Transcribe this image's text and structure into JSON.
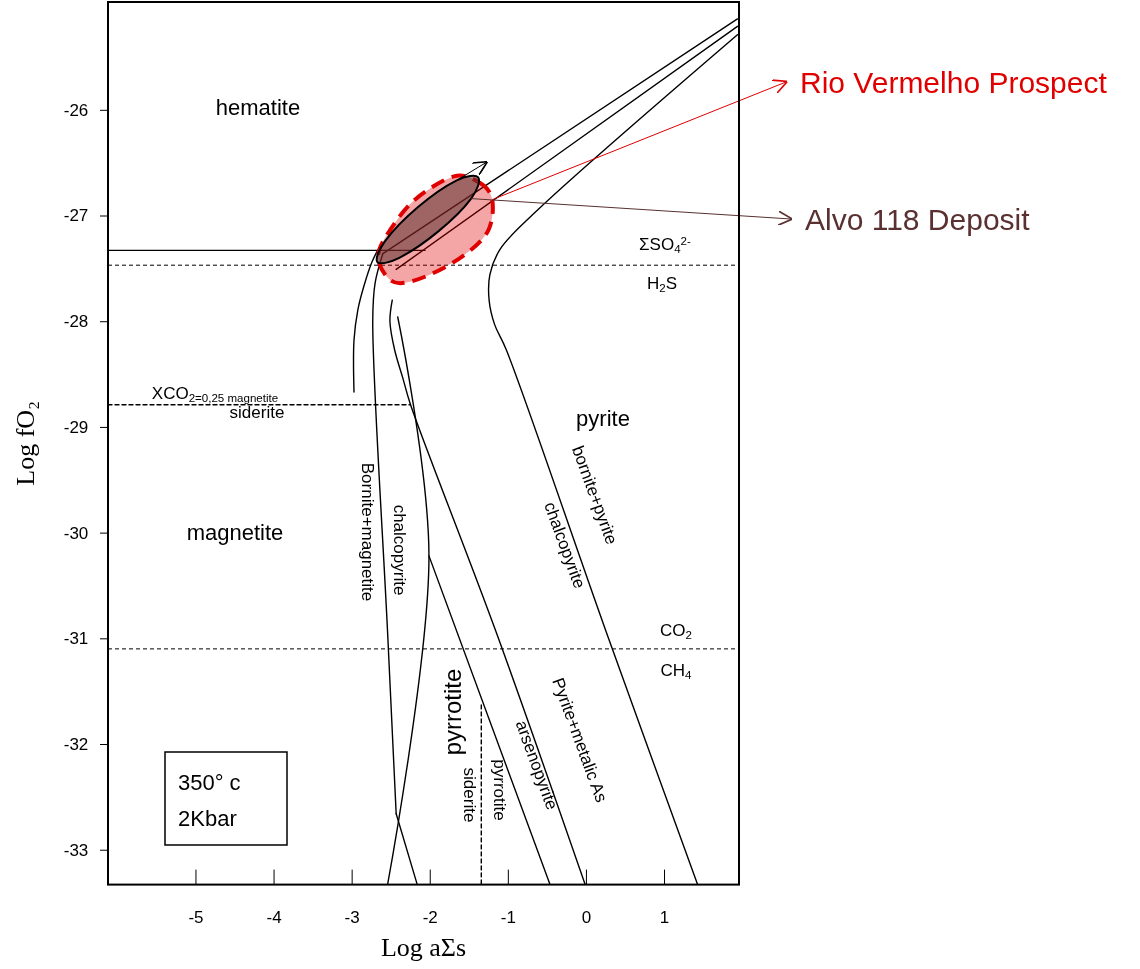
{
  "chart_data": {
    "type": "line",
    "xlabel": "Log aΣs",
    "ylabel": "Log fO₂",
    "xlim": [
      -6.12,
      1.96
    ],
    "xticks": [
      -5,
      -4,
      -3,
      -2,
      -1,
      0,
      1
    ],
    "ylim": [
      -33.33,
      -24.98
    ],
    "yticks": [
      -33,
      -32,
      -31,
      -30,
      -29,
      -28,
      -27,
      -26
    ],
    "ref_lines": [
      {
        "axis": "y",
        "value": -27.47,
        "line_style": "dashed",
        "color": "#000000"
      },
      {
        "axis": "y",
        "value": -31.1,
        "line_style": "dashed",
        "color": "#000000"
      }
    ],
    "series": [
      {
        "color": "#000000",
        "line_style": "solid",
        "x": [
          -6.12,
          -2.06
        ],
        "values": [
          -27.33,
          -27.33
        ]
      },
      {
        "color": "#000000",
        "line_style": "solid",
        "x": [
          -2.97,
          -2.97,
          -2.92,
          -2.84,
          -2.74,
          -2.66
        ],
        "values": [
          -28.67,
          -28.18,
          -27.89,
          -27.66,
          -27.44,
          -27.32
        ]
      },
      {
        "color": "#000000",
        "line_style": "solid",
        "x": [
          -2.6,
          -2.7,
          -2.73,
          -2.54,
          -2.43
        ],
        "values": [
          -27.36,
          -27.64,
          -28.0,
          -30.94,
          -32.66
        ]
      },
      {
        "color": "#000000",
        "line_style": "solid",
        "x": [
          -2.41,
          -2.01,
          -2.54
        ],
        "values": [
          -27.96,
          -30.22,
          -33.33
        ]
      },
      {
        "color": "#000000",
        "line_style": "solid",
        "x": [
          -2.43,
          -2.16
        ],
        "values": [
          -32.66,
          -33.33
        ]
      },
      {
        "color": "#000000",
        "line_style": "solid",
        "x": [
          -2.01,
          -0.46
        ],
        "values": [
          -30.22,
          -33.33
        ]
      },
      {
        "color": "#000000",
        "line_style": "solid",
        "x": [
          -2.48,
          -2.51,
          -2.45,
          -2.34,
          -2.25,
          -1.15,
          -0.01
        ],
        "values": [
          -27.8,
          -28.0,
          -28.27,
          -28.55,
          -28.78,
          -30.94,
          -33.33
        ]
      },
      {
        "color": "#000000",
        "line_style": "solid",
        "x": [
          1.94,
          -0.65,
          -1.1,
          -1.23,
          -1.24,
          -1.17,
          -1.02,
          0.26,
          1.43
        ],
        "values": [
          -25.29,
          -26.97,
          -27.32,
          -27.56,
          -27.8,
          -28.03,
          -28.27,
          -30.94,
          -33.33
        ]
      },
      {
        "color": "#000000",
        "line_style": "solid",
        "x": [
          -2.6,
          1.94
        ],
        "values": [
          -27.36,
          -25.14
        ]
      },
      {
        "color": "#000000",
        "line_style": "solid",
        "x": [
          -2.43,
          1.94
        ],
        "values": [
          -27.51,
          -25.21
        ]
      },
      {
        "color": "#000000",
        "line_style": "dashed",
        "x": [
          -6.12,
          -2.25
        ],
        "values": [
          -28.79,
          -28.79
        ]
      },
      {
        "color": "#000000",
        "line_style": "dashed",
        "x": [
          -1.34,
          -1.34
        ],
        "values": [
          -31.63,
          -33.33
        ]
      },
      {
        "type": "area",
        "name": "Rio Vermelho Prospect",
        "color": "#e00000",
        "line_style": "dashed",
        "x": [
          -1.69,
          -1.36,
          -1.2,
          -1.25,
          -1.55,
          -2.0,
          -2.38,
          -2.57,
          -2.66,
          -2.51,
          -2.19
        ],
        "values": [
          -26.63,
          -26.69,
          -26.85,
          -27.14,
          -27.37,
          -27.56,
          -27.64,
          -27.56,
          -27.37,
          -27.14,
          -26.85
        ]
      },
      {
        "type": "area",
        "name": "Alvo 118 Deposit",
        "color": "#5a3030",
        "line_style": "solid",
        "x": [
          -1.38,
          -1.47,
          -1.89,
          -2.39,
          -2.67,
          -2.57,
          -2.15,
          -1.66
        ],
        "values": [
          -26.64,
          -26.84,
          -27.15,
          -27.4,
          -27.44,
          -27.24,
          -26.92,
          -26.67
        ]
      }
    ],
    "annotations": [
      "hematite",
      "magnetite",
      "pyrite",
      "pyrrotite",
      "Bornite+magnetite",
      "chalcopyrite",
      "bornite+pyrite",
      "chalcopyrite",
      "Pyrite+metalic As",
      "arsenopyrite",
      "pyrrotite",
      "siderite",
      "ΣSO$_{4}$$^{2-}$",
      "H$_{2}$S",
      "CO$_{2}$",
      "CH$_{4}$",
      "XCO$_{2=0,25 magnetite}$",
      "siderite",
      "350° c",
      "2Kbar"
    ]
  }
}
